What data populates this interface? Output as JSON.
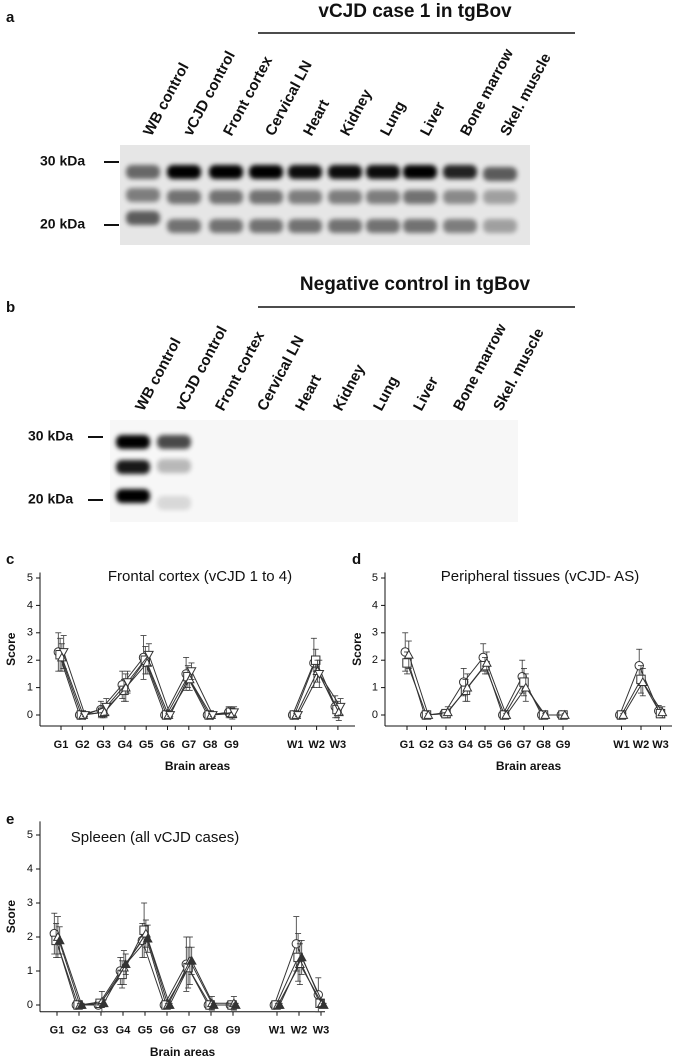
{
  "blots": [
    {
      "panel": "a",
      "header": "vCJD case 1 in tgBov",
      "lanes": [
        "WB control",
        "vCJD control",
        "Front cortex",
        "Cervical LN",
        "Heart",
        "Kidney",
        "Lung",
        "Liver",
        "Bone marrow",
        "Skel. muscle"
      ],
      "markers": [
        "30 kDa",
        "20 kDa"
      ]
    },
    {
      "panel": "b",
      "header": "Negative control  in tgBov",
      "lanes": [
        "WB control",
        "vCJD control",
        "Front cortex",
        "Cervical LN",
        "Heart",
        "Kidney",
        "Lung",
        "Liver",
        "Bone marrow",
        "Skel. muscle"
      ],
      "markers": [
        "30 kDa",
        "20 kDa"
      ]
    }
  ],
  "chart_data": [
    {
      "type": "line",
      "panel": "c",
      "title": "Frontal cortex (vCJD 1 to 4)",
      "x_label": "Brain areas",
      "y_label": "Score",
      "categories": [
        "G1",
        "G2",
        "G3",
        "G4",
        "G5",
        "G6",
        "G7",
        "G8",
        "G9",
        null,
        null,
        "W1",
        "W2",
        "W3"
      ],
      "ylim": [
        -0.4,
        5.2
      ],
      "yticks": [
        0,
        1,
        2,
        3,
        4,
        5
      ],
      "color": "#333333",
      "series": [
        {
          "marker": "circle",
          "values": [
            2.3,
            0,
            0.2,
            1.1,
            2.1,
            0,
            1.5,
            0,
            0.1,
            null,
            null,
            0,
            1.9,
            0.3
          ],
          "errors": [
            0.7,
            0.05,
            0.3,
            0.5,
            0.8,
            0.05,
            0.6,
            0.05,
            0.2,
            null,
            null,
            0.05,
            0.9,
            0.4
          ]
        },
        {
          "marker": "square",
          "values": [
            2.2,
            0,
            0.1,
            0.9,
            2.0,
            0,
            1.4,
            0,
            0.1,
            null,
            null,
            0,
            2.0,
            0.2
          ],
          "errors": [
            0.6,
            0.05,
            0.2,
            0.4,
            0.5,
            0.05,
            0.4,
            0.05,
            0.2,
            null,
            null,
            0.05,
            0.4,
            0.3
          ]
        },
        {
          "marker": "triangle",
          "values": [
            2.1,
            0,
            0.1,
            1.0,
            1.9,
            0,
            1.3,
            0,
            0.05,
            null,
            null,
            0,
            1.6,
            0.1
          ],
          "errors": [
            0.5,
            0.05,
            0.2,
            0.5,
            0.4,
            0.05,
            0.4,
            0.05,
            0.2,
            null,
            null,
            0.05,
            0.4,
            0.3
          ]
        },
        {
          "marker": "triangle-down",
          "values": [
            2.3,
            0,
            0.3,
            1.2,
            2.2,
            0,
            1.6,
            0,
            0.1,
            null,
            null,
            0,
            1.5,
            0.3
          ],
          "errors": [
            0.6,
            0.05,
            0.3,
            0.4,
            0.4,
            0.05,
            0.3,
            0.05,
            0.2,
            null,
            null,
            0.05,
            0.5,
            0.3
          ]
        }
      ]
    },
    {
      "type": "line",
      "panel": "d",
      "title": "Peripheral tissues (vCJD- AS)",
      "x_label": "Brain areas",
      "y_label": "Score",
      "categories": [
        "G1",
        "G2",
        "G3",
        "G4",
        "G5",
        "G6",
        "G7",
        "G8",
        "G9",
        null,
        null,
        "W1",
        "W2",
        "W3"
      ],
      "ylim": [
        -0.4,
        5.2
      ],
      "yticks": [
        0,
        1,
        2,
        3,
        4,
        5
      ],
      "color": "#333333",
      "series": [
        {
          "marker": "circle",
          "values": [
            2.3,
            0,
            0.05,
            1.2,
            2.1,
            0,
            1.4,
            0,
            0,
            null,
            null,
            0,
            1.8,
            0.15
          ],
          "errors": [
            0.7,
            0.05,
            0.1,
            0.5,
            0.5,
            0.05,
            0.6,
            0.05,
            0.05,
            null,
            null,
            0.05,
            0.6,
            0.2
          ]
        },
        {
          "marker": "square",
          "values": [
            1.9,
            0,
            0.05,
            0.9,
            1.8,
            0,
            1.2,
            0,
            0,
            null,
            null,
            0,
            1.3,
            0.05
          ],
          "errors": [
            0.4,
            0.05,
            0.1,
            0.4,
            0.3,
            0.05,
            0.5,
            0.05,
            0.05,
            null,
            null,
            0.05,
            0.5,
            0.1
          ]
        },
        {
          "marker": "triangle",
          "values": [
            2.2,
            0,
            0.1,
            1.0,
            1.9,
            0,
            1.0,
            0,
            0,
            null,
            null,
            0,
            1.2,
            0.1
          ],
          "errors": [
            0.5,
            0.05,
            0.2,
            0.5,
            0.4,
            0.05,
            0.5,
            0.05,
            0.05,
            null,
            null,
            0.05,
            0.5,
            0.2
          ]
        }
      ]
    },
    {
      "type": "line",
      "panel": "e",
      "title": "Spleeen (all vCJD cases)",
      "x_label": "Brain areas",
      "y_label": "Score",
      "categories": [
        "G1",
        "G2",
        "G3",
        "G4",
        "G5",
        "G6",
        "G7",
        "G8",
        "G9",
        null,
        "W1",
        "W2",
        "W3"
      ],
      "ylim": [
        -0.2,
        5.4
      ],
      "yticks": [
        0,
        1,
        2,
        3,
        4,
        5
      ],
      "color": "#333333",
      "series": [
        {
          "marker": "circle",
          "values": [
            2.1,
            0,
            0,
            1.0,
            1.9,
            0,
            1.2,
            0,
            0,
            null,
            0,
            1.8,
            0.3
          ],
          "errors": [
            0.6,
            0.05,
            0.1,
            0.4,
            0.5,
            0.05,
            0.8,
            0.05,
            0.05,
            null,
            0.05,
            0.8,
            0.5
          ]
        },
        {
          "marker": "square",
          "values": [
            1.9,
            0,
            0.05,
            0.9,
            2.2,
            0,
            1.1,
            0,
            0,
            null,
            0,
            1.4,
            0.05
          ],
          "errors": [
            0.5,
            0.05,
            0.1,
            0.4,
            0.8,
            0.05,
            0.6,
            0.05,
            0.05,
            null,
            0.05,
            0.7,
            0.1
          ]
        },
        {
          "marker": "triangle",
          "values": [
            2.0,
            0,
            0.1,
            1.1,
            2.1,
            0,
            1.3,
            0.05,
            0.05,
            null,
            0,
            1.2,
            0.05
          ],
          "errors": [
            0.6,
            0.05,
            0.3,
            0.5,
            0.4,
            0.05,
            0.7,
            0.2,
            0.2,
            null,
            0.05,
            0.6,
            0.1
          ]
        },
        {
          "marker": "triangle-filled",
          "values": [
            1.9,
            0,
            0.05,
            1.2,
            1.95,
            0,
            1.3,
            0,
            0,
            null,
            0,
            1.4,
            0
          ],
          "errors": [
            0.4,
            0.05,
            0.1,
            0.3,
            0.4,
            0.05,
            0.4,
            0.05,
            0.05,
            null,
            0.05,
            0.5,
            0.05
          ]
        }
      ]
    }
  ]
}
